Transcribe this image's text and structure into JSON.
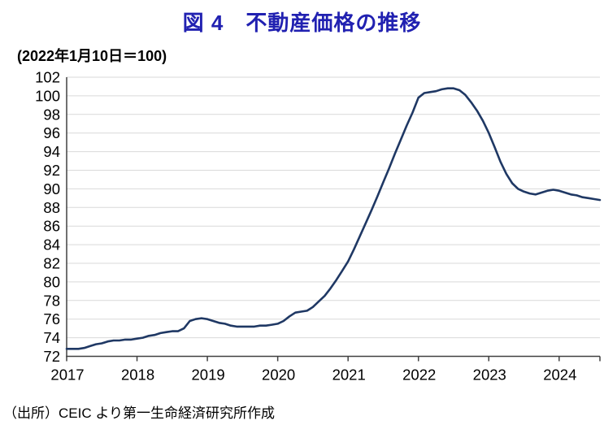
{
  "header": {
    "title": "図 4　不動産価格の推移",
    "subtitle": "(2022年1月10日＝100)"
  },
  "footer": {
    "source": "（出所）CEIC より第一生命経済研究所作成"
  },
  "colors": {
    "title": "#2121B1",
    "line": "#1F3864",
    "grid": "#D9D9D9",
    "axis": "#404040",
    "text": "#000000"
  },
  "chart_data": {
    "type": "line",
    "title": "図 4　不動産価格の推移",
    "unit_note": "(2022年1月10日＝100)",
    "xlabel": "",
    "ylabel": "",
    "ylim": [
      72,
      102
    ],
    "ytick_step": 2,
    "xlim": [
      2017,
      2024.58
    ],
    "xticks": [
      2017,
      2018,
      2019,
      2020,
      2021,
      2022,
      2023,
      2024
    ],
    "grid": "horizontal",
    "legend": "none",
    "points": [
      [
        2017.0,
        72.8
      ],
      [
        2017.083,
        72.8
      ],
      [
        2017.167,
        72.8
      ],
      [
        2017.25,
        72.9
      ],
      [
        2017.333,
        73.1
      ],
      [
        2017.417,
        73.3
      ],
      [
        2017.5,
        73.4
      ],
      [
        2017.583,
        73.6
      ],
      [
        2017.667,
        73.7
      ],
      [
        2017.75,
        73.7
      ],
      [
        2017.833,
        73.8
      ],
      [
        2017.917,
        73.8
      ],
      [
        2018.0,
        73.9
      ],
      [
        2018.083,
        74.0
      ],
      [
        2018.167,
        74.2
      ],
      [
        2018.25,
        74.3
      ],
      [
        2018.333,
        74.5
      ],
      [
        2018.417,
        74.6
      ],
      [
        2018.5,
        74.7
      ],
      [
        2018.583,
        74.7
      ],
      [
        2018.667,
        75.0
      ],
      [
        2018.75,
        75.8
      ],
      [
        2018.833,
        76.0
      ],
      [
        2018.917,
        76.1
      ],
      [
        2019.0,
        76.0
      ],
      [
        2019.083,
        75.8
      ],
      [
        2019.167,
        75.6
      ],
      [
        2019.25,
        75.5
      ],
      [
        2019.333,
        75.3
      ],
      [
        2019.417,
        75.2
      ],
      [
        2019.5,
        75.2
      ],
      [
        2019.583,
        75.2
      ],
      [
        2019.667,
        75.2
      ],
      [
        2019.75,
        75.3
      ],
      [
        2019.833,
        75.3
      ],
      [
        2019.917,
        75.4
      ],
      [
        2020.0,
        75.5
      ],
      [
        2020.083,
        75.8
      ],
      [
        2020.167,
        76.3
      ],
      [
        2020.25,
        76.7
      ],
      [
        2020.333,
        76.8
      ],
      [
        2020.417,
        76.9
      ],
      [
        2020.5,
        77.3
      ],
      [
        2020.583,
        77.9
      ],
      [
        2020.667,
        78.5
      ],
      [
        2020.75,
        79.3
      ],
      [
        2020.833,
        80.2
      ],
      [
        2020.917,
        81.2
      ],
      [
        2021.0,
        82.2
      ],
      [
        2021.083,
        83.5
      ],
      [
        2021.167,
        84.9
      ],
      [
        2021.25,
        86.3
      ],
      [
        2021.333,
        87.7
      ],
      [
        2021.417,
        89.2
      ],
      [
        2021.5,
        90.7
      ],
      [
        2021.583,
        92.2
      ],
      [
        2021.667,
        93.8
      ],
      [
        2021.75,
        95.3
      ],
      [
        2021.833,
        96.8
      ],
      [
        2021.917,
        98.2
      ],
      [
        2022.0,
        99.8
      ],
      [
        2022.083,
        100.3
      ],
      [
        2022.167,
        100.4
      ],
      [
        2022.25,
        100.5
      ],
      [
        2022.333,
        100.7
      ],
      [
        2022.417,
        100.8
      ],
      [
        2022.5,
        100.8
      ],
      [
        2022.583,
        100.6
      ],
      [
        2022.667,
        100.1
      ],
      [
        2022.75,
        99.3
      ],
      [
        2022.833,
        98.4
      ],
      [
        2022.917,
        97.3
      ],
      [
        2023.0,
        96.0
      ],
      [
        2023.083,
        94.5
      ],
      [
        2023.167,
        92.9
      ],
      [
        2023.25,
        91.6
      ],
      [
        2023.333,
        90.6
      ],
      [
        2023.417,
        90.0
      ],
      [
        2023.5,
        89.7
      ],
      [
        2023.583,
        89.5
      ],
      [
        2023.667,
        89.4
      ],
      [
        2023.75,
        89.6
      ],
      [
        2023.833,
        89.8
      ],
      [
        2023.917,
        89.9
      ],
      [
        2024.0,
        89.8
      ],
      [
        2024.083,
        89.6
      ],
      [
        2024.167,
        89.4
      ],
      [
        2024.25,
        89.3
      ],
      [
        2024.333,
        89.1
      ],
      [
        2024.417,
        89.0
      ],
      [
        2024.5,
        88.9
      ],
      [
        2024.58,
        88.8
      ]
    ]
  }
}
